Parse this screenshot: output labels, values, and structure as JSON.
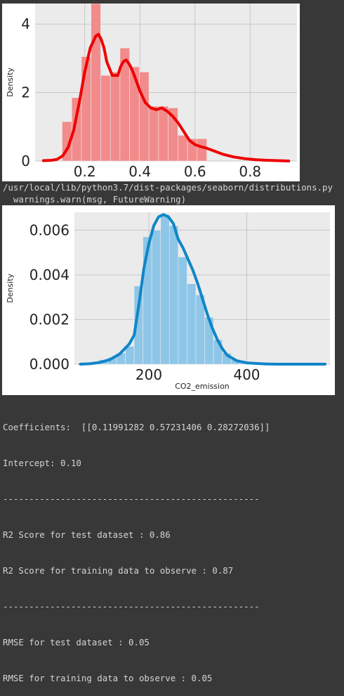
{
  "chart_data": [
    {
      "type": "histogram",
      "ylabel": "Density",
      "xlabel": "",
      "xlim": [
        0.02,
        0.97
      ],
      "ylim": [
        0,
        4.6
      ],
      "xticks": [
        "0.2",
        "0.4",
        "0.6",
        "0.8"
      ],
      "xtick_values": [
        0.2,
        0.4,
        0.6,
        0.8
      ],
      "yticks": [
        "0",
        "2",
        "4"
      ],
      "ytick_values": [
        0,
        2,
        4
      ],
      "bar_color": "#f28b8b",
      "line_color": "#ee0000",
      "bins": [
        {
          "x0": 0.118,
          "x1": 0.153,
          "value": 1.15
        },
        {
          "x0": 0.153,
          "x1": 0.188,
          "value": 1.85
        },
        {
          "x0": 0.188,
          "x1": 0.223,
          "value": 3.05
        },
        {
          "x0": 0.223,
          "x1": 0.258,
          "value": 4.6
        },
        {
          "x0": 0.258,
          "x1": 0.293,
          "value": 2.5
        },
        {
          "x0": 0.293,
          "x1": 0.328,
          "value": 2.6
        },
        {
          "x0": 0.328,
          "x1": 0.363,
          "value": 3.3
        },
        {
          "x0": 0.363,
          "x1": 0.398,
          "value": 2.75
        },
        {
          "x0": 0.398,
          "x1": 0.433,
          "value": 2.6
        },
        {
          "x0": 0.433,
          "x1": 0.468,
          "value": 1.6
        },
        {
          "x0": 0.468,
          "x1": 0.503,
          "value": 1.6
        },
        {
          "x0": 0.503,
          "x1": 0.538,
          "value": 1.55
        },
        {
          "x0": 0.538,
          "x1": 0.573,
          "value": 0.75
        },
        {
          "x0": 0.573,
          "x1": 0.608,
          "value": 0.65
        },
        {
          "x0": 0.608,
          "x1": 0.643,
          "value": 0.65
        }
      ],
      "kde_x": [
        0.05,
        0.08,
        0.1,
        0.12,
        0.14,
        0.16,
        0.18,
        0.2,
        0.22,
        0.24,
        0.25,
        0.26,
        0.27,
        0.28,
        0.3,
        0.32,
        0.33,
        0.34,
        0.35,
        0.36,
        0.37,
        0.38,
        0.4,
        0.42,
        0.44,
        0.46,
        0.48,
        0.5,
        0.52,
        0.54,
        0.56,
        0.58,
        0.6,
        0.62,
        0.64,
        0.66,
        0.7,
        0.74,
        0.78,
        0.82,
        0.86,
        0.9,
        0.94
      ],
      "kde_y": [
        0.01,
        0.02,
        0.05,
        0.15,
        0.4,
        0.9,
        1.7,
        2.6,
        3.3,
        3.65,
        3.7,
        3.55,
        3.3,
        2.9,
        2.5,
        2.5,
        2.75,
        2.9,
        2.95,
        2.85,
        2.7,
        2.5,
        2.05,
        1.7,
        1.55,
        1.5,
        1.55,
        1.45,
        1.3,
        1.1,
        0.85,
        0.6,
        0.48,
        0.42,
        0.38,
        0.32,
        0.2,
        0.12,
        0.07,
        0.04,
        0.02,
        0.01,
        0.0
      ]
    },
    {
      "type": "histogram",
      "ylabel": "Density",
      "xlabel": "CO2_emission",
      "xlim": [
        48,
        570
      ],
      "ylim": [
        0,
        0.0068
      ],
      "xticks": [
        "200",
        "400"
      ],
      "xtick_values": [
        200,
        400
      ],
      "yticks": [
        "0.000",
        "0.002",
        "0.004",
        "0.006"
      ],
      "ytick_values": [
        0,
        0.002,
        0.004,
        0.006
      ],
      "bar_color": "#8ec6e8",
      "line_color": "#0f86c8",
      "bins": [
        {
          "x0": 80,
          "x1": 98,
          "value": 5e-05
        },
        {
          "x0": 98,
          "x1": 116,
          "value": 0.0002
        },
        {
          "x0": 116,
          "x1": 134,
          "value": 0.0003
        },
        {
          "x0": 134,
          "x1": 152,
          "value": 0.0005
        },
        {
          "x0": 152,
          "x1": 170,
          "value": 0.0008
        },
        {
          "x0": 170,
          "x1": 188,
          "value": 0.0035
        },
        {
          "x0": 188,
          "x1": 206,
          "value": 0.0057
        },
        {
          "x0": 206,
          "x1": 224,
          "value": 0.006
        },
        {
          "x0": 224,
          "x1": 242,
          "value": 0.0067
        },
        {
          "x0": 242,
          "x1": 260,
          "value": 0.0062
        },
        {
          "x0": 260,
          "x1": 278,
          "value": 0.0048
        },
        {
          "x0": 278,
          "x1": 296,
          "value": 0.0036
        },
        {
          "x0": 296,
          "x1": 314,
          "value": 0.0031
        },
        {
          "x0": 314,
          "x1": 332,
          "value": 0.0021
        },
        {
          "x0": 332,
          "x1": 350,
          "value": 0.0011
        },
        {
          "x0": 350,
          "x1": 368,
          "value": 0.0005
        },
        {
          "x0": 368,
          "x1": 386,
          "value": 0.0002
        },
        {
          "x0": 386,
          "x1": 404,
          "value": 8e-05
        }
      ],
      "kde_x": [
        60,
        80,
        100,
        120,
        140,
        160,
        170,
        180,
        190,
        200,
        210,
        220,
        230,
        240,
        250,
        260,
        270,
        280,
        290,
        300,
        310,
        320,
        330,
        340,
        350,
        360,
        380,
        400,
        420,
        440,
        460,
        480,
        500,
        520,
        540,
        560
      ],
      "kde_y": [
        0.0,
        2e-05,
        8e-05,
        0.0002,
        0.00045,
        0.0009,
        0.0013,
        0.0027,
        0.0043,
        0.0054,
        0.0062,
        0.0066,
        0.0067,
        0.0066,
        0.0063,
        0.0056,
        0.0052,
        0.0047,
        0.0042,
        0.0036,
        0.0029,
        0.0022,
        0.0016,
        0.0011,
        0.0007,
        0.0004,
        0.00015,
        6e-05,
        3e-05,
        1e-05,
        0.0,
        0.0,
        0.0,
        0.0,
        0.0,
        0.0
      ]
    }
  ],
  "console": {
    "warn_line1": "/usr/local/lib/python3.7/dist-packages/seaborn/distributions.py",
    "warn_line2": "  warnings.warn(msg, FutureWarning)",
    "output_lines": [
      "Coefficients:  [[0.11991282 0.57231406 0.28272036]]",
      "Intercept: 0.10",
      "-------------------------------------------------",
      "R2 Score for test dataset : 0.86",
      "R2 Score for training data to observe : 0.87",
      "-------------------------------------------------",
      "RMSE for test dataset : 0.05",
      "RMSE for training data to observe : 0.05"
    ]
  }
}
